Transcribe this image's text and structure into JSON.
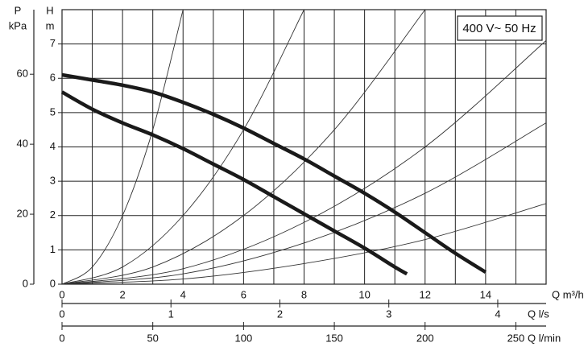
{
  "chart_data": {
    "type": "line",
    "note_box": "400 V~ 50 Hz",
    "ylabel": "H",
    "yunit": "m",
    "y2label": "P",
    "y2unit": "kPa",
    "xlabel": "Q m³/h",
    "xlim": [
      0,
      16
    ],
    "xticks": [
      0,
      2,
      4,
      6,
      8,
      10,
      12,
      14
    ],
    "ylim": [
      0,
      8
    ],
    "yticks": [
      0,
      1,
      2,
      3,
      4,
      5,
      6,
      7
    ],
    "y2lim": [
      0,
      78.45
    ],
    "y2ticks": [
      0,
      20,
      40,
      60
    ],
    "x_axes": [
      {
        "label": "Q l/s",
        "lim": [
          0,
          4.444
        ],
        "ticks": [
          0,
          1,
          2,
          3,
          4
        ]
      },
      {
        "label": "Q l/min",
        "lim": [
          0,
          266.67
        ],
        "ticks": [
          0,
          50,
          100,
          150,
          200,
          250
        ]
      }
    ],
    "grid": true,
    "series": [
      {
        "color": "#1a1a1a",
        "x": [
          0,
          1,
          2,
          3,
          4,
          5,
          6,
          7,
          8,
          9,
          10,
          11,
          12,
          13,
          14
        ],
        "values": [
          6.1,
          5.95,
          5.8,
          5.6,
          5.3,
          4.95,
          4.55,
          4.1,
          3.65,
          3.15,
          2.65,
          2.1,
          1.5,
          0.9,
          0.35
        ]
      },
      {
        "color": "#1a1a1a",
        "x": [
          0,
          1,
          2,
          3,
          4,
          5,
          6,
          7,
          8,
          9,
          10,
          11,
          11.4
        ],
        "values": [
          5.6,
          5.1,
          4.7,
          4.35,
          3.95,
          3.5,
          3.05,
          2.55,
          2.05,
          1.55,
          1.05,
          0.5,
          0.3
        ]
      }
    ],
    "system_curves": [
      {
        "x": [
          0,
          1,
          2,
          3,
          4
        ],
        "values": [
          0,
          0.5,
          2,
          4.5,
          8
        ]
      },
      {
        "x": [
          0,
          2,
          4,
          6,
          8
        ],
        "values": [
          0,
          0.5,
          2,
          4.5,
          8
        ]
      },
      {
        "x": [
          0,
          3,
          6,
          9,
          12
        ],
        "values": [
          0,
          0.5,
          2,
          4.5,
          8
        ]
      },
      {
        "x": [
          0,
          4,
          8,
          12,
          16
        ],
        "values": [
          0,
          0.45,
          1.8,
          4.0,
          7.1
        ]
      },
      {
        "x": [
          0,
          4,
          8,
          12,
          16
        ],
        "values": [
          0,
          0.3,
          1.2,
          2.65,
          4.7
        ]
      },
      {
        "x": [
          0,
          4,
          8,
          12,
          16
        ],
        "values": [
          0,
          0.15,
          0.6,
          1.3,
          2.35
        ]
      }
    ]
  }
}
